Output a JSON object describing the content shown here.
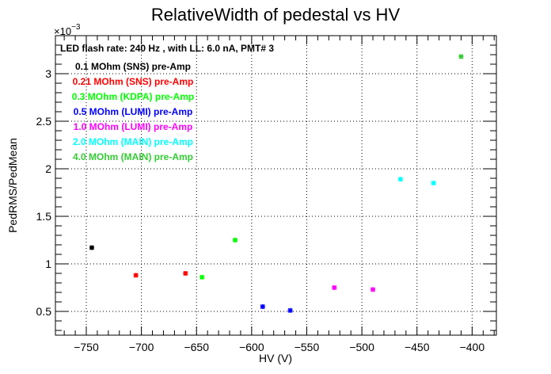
{
  "chart_data": {
    "type": "scatter",
    "title": "RelativeWidth of pedestal vs HV",
    "xlabel": "HV (V)",
    "ylabel": "PedRMS/PedMean",
    "y_multiplier_label": "×10",
    "y_multiplier_exponent": "−3",
    "xlim": [
      -778,
      -378
    ],
    "ylim": [
      0.25,
      3.4
    ],
    "x_ticks": [
      -750,
      -700,
      -650,
      -600,
      -550,
      -500,
      -450,
      -400
    ],
    "x_tick_labels": [
      "−750",
      "−700",
      "−650",
      "−600",
      "−550",
      "−500",
      "−450",
      "−400"
    ],
    "y_ticks": [
      0.5,
      1,
      1.5,
      2,
      2.5,
      3
    ],
    "y_tick_labels": [
      "0.5",
      "1",
      "1.5",
      "2",
      "2.5",
      "3"
    ],
    "grid": true,
    "legend_title": "LED flash rate: 240 Hz , with LL: 6.0 nA, PMT# 3",
    "legend_placement": "top-left",
    "series": [
      {
        "name": "0.1 MOhm (SNS) pre-Amp",
        "color": "#000000",
        "x": [
          -745
        ],
        "y": [
          1.17
        ]
      },
      {
        "name": "0.21 MOhm (SNS) pre-Amp",
        "color": "#ff0000",
        "x": [
          -705,
          -660
        ],
        "y": [
          0.88,
          0.9
        ]
      },
      {
        "name": "0.3 MOhm (KDPA) pre-Amp",
        "color": "#00ff00",
        "x": [
          -645,
          -615
        ],
        "y": [
          0.86,
          1.25
        ]
      },
      {
        "name": "0.5 MOhm (LUMI) pre-Amp",
        "color": "#0000ff",
        "x": [
          -590,
          -565
        ],
        "y": [
          0.55,
          0.51
        ]
      },
      {
        "name": "1.0 MOhm (LUMI) pre-Amp",
        "color": "#ff00ff",
        "x": [
          -525,
          -490
        ],
        "y": [
          0.75,
          0.73
        ]
      },
      {
        "name": "2.0 MOhm (MAIN) pre-Amp",
        "color": "#00ffff",
        "x": [
          -465,
          -435
        ],
        "y": [
          1.89,
          1.85
        ]
      },
      {
        "name": "4.0 MOhm (MAIN) pre-Amp",
        "color": "#33cc33",
        "x": [
          -410
        ],
        "y": [
          3.18
        ]
      }
    ]
  }
}
